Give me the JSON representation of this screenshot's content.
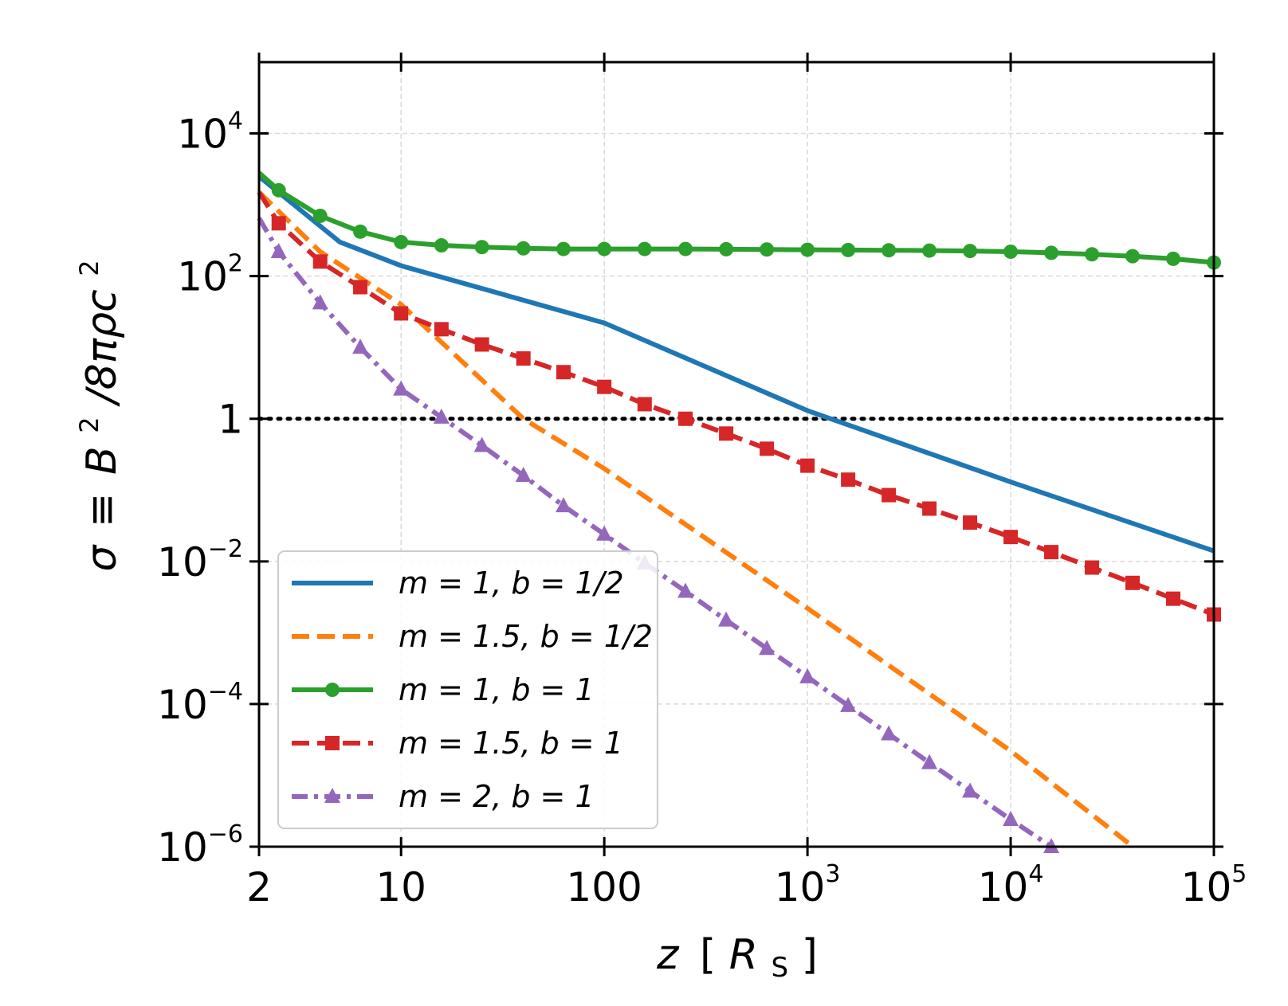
{
  "chart_data": {
    "type": "line",
    "title": "",
    "xscale": "log",
    "yscale": "log",
    "xlim": [
      2,
      100000
    ],
    "ylim": [
      1e-06,
      100000
    ],
    "xlabel": {
      "var": "z",
      "open": "[",
      "unit": "R",
      "unit_sub": "S",
      "close": "]"
    },
    "ylabel": {
      "lhs": "σ",
      "op": "≡",
      "B": "B",
      "B_exp": "2",
      "rest": "/8πρc",
      "c_exp": "2"
    },
    "xticks": [
      {
        "value": 2,
        "base": "2",
        "exp": ""
      },
      {
        "value": 10,
        "base": "10",
        "exp": ""
      },
      {
        "value": 100,
        "base": "100",
        "exp": ""
      },
      {
        "value": 1000,
        "base": "10",
        "exp": "3"
      },
      {
        "value": 10000,
        "base": "10",
        "exp": "4"
      },
      {
        "value": 100000,
        "base": "10",
        "exp": "5"
      }
    ],
    "yticks": [
      {
        "value": 1e-06,
        "base": "10",
        "exp": "−6"
      },
      {
        "value": 0.0001,
        "base": "10",
        "exp": "−4"
      },
      {
        "value": 0.01,
        "base": "10",
        "exp": "−2"
      },
      {
        "value": 1,
        "base": "1",
        "exp": ""
      },
      {
        "value": 100,
        "base": "10",
        "exp": "2"
      },
      {
        "value": 10000,
        "base": "10",
        "exp": "4"
      }
    ],
    "grid": true,
    "legend_position": "lower-left",
    "reference_line": {
      "y": 1,
      "style": "dotted",
      "color": "#000000"
    },
    "series": [
      {
        "name": "m = 1, b = 1/2",
        "label": "m = 1,  b = 1/2",
        "color": "#1f77b4",
        "dash": "solid",
        "marker": "none",
        "x": [
          2,
          5,
          10,
          100,
          1000,
          10000,
          100000
        ],
        "y": [
          2500,
          300,
          140,
          22,
          1.3,
          0.13,
          0.014
        ]
      },
      {
        "name": "m = 1.5, b = 1/2",
        "label": "m = 1.5,  b = 1/2",
        "color": "#ff7f0e",
        "dash": "dashed",
        "marker": "none",
        "x": [
          2,
          4,
          10,
          40,
          100,
          1000,
          10000,
          40000
        ],
        "y": [
          1500,
          220,
          40,
          1,
          0.2,
          0.0022,
          2.2e-05,
          1e-06
        ]
      },
      {
        "name": "m = 1, b = 1",
        "label": "m = 1,  b = 1",
        "color": "#2ca02c",
        "dash": "solid",
        "marker": "circle",
        "x": [
          2,
          2.5,
          4,
          6.3,
          10,
          15.8,
          25,
          40,
          63,
          100,
          158,
          251,
          398,
          631,
          1000,
          1585,
          2512,
          3981,
          6310,
          10000,
          15849,
          25119,
          39811,
          63096,
          100000
        ],
        "y": [
          2800,
          1600,
          700,
          420,
          300,
          270,
          255,
          245,
          240,
          240,
          240,
          240,
          238,
          236,
          234,
          232,
          230,
          228,
          225,
          220,
          212,
          202,
          190,
          175,
          155
        ]
      },
      {
        "name": "m = 1.5, b = 1",
        "label": "m = 1.5,  b = 1",
        "color": "#d62728",
        "dash": "dashed",
        "marker": "square",
        "x": [
          2,
          2.5,
          4,
          6.3,
          10,
          15.8,
          25,
          40,
          63,
          100,
          158,
          251,
          398,
          631,
          1000,
          1585,
          2512,
          3981,
          6310,
          10000,
          15849,
          25119,
          39811,
          63096,
          100000
        ],
        "y": [
          1500,
          550,
          160,
          70,
          30,
          18,
          11,
          7,
          4.5,
          2.8,
          1.6,
          1.0,
          0.62,
          0.38,
          0.22,
          0.14,
          0.085,
          0.055,
          0.035,
          0.022,
          0.0135,
          0.0082,
          0.005,
          0.003,
          0.0018
        ]
      },
      {
        "name": "m = 2, b = 1",
        "label": "m = 2,  b = 1",
        "color": "#9467bd",
        "dash": "dashdot",
        "marker": "triangle",
        "x": [
          2,
          2.5,
          4,
          6.3,
          10,
          15.8,
          25,
          40,
          63,
          100,
          158,
          251,
          398,
          631,
          1000,
          1585,
          2512,
          3981,
          6310,
          10000,
          15849
        ],
        "y": [
          650,
          220,
          42,
          10,
          2.6,
          1.05,
          0.42,
          0.16,
          0.06,
          0.024,
          0.0095,
          0.0038,
          0.0015,
          0.0006,
          0.00024,
          9.5e-05,
          3.8e-05,
          1.5e-05,
          6e-06,
          2.4e-06,
          1e-06
        ]
      }
    ]
  }
}
